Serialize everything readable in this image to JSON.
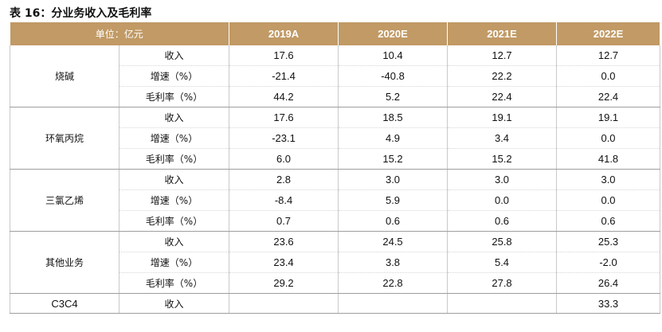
{
  "title": "表 16：分业务收入及毛利率",
  "header": {
    "unit": "单位：亿元",
    "years": [
      "2019A",
      "2020E",
      "2021E",
      "2022E"
    ]
  },
  "groups": [
    {
      "segment": "烧碱",
      "rows": [
        {
          "metric": "收入",
          "values": [
            "17.6",
            "10.4",
            "12.7",
            "12.7"
          ]
        },
        {
          "metric": "增速（%）",
          "values": [
            "-21.4",
            "-40.8",
            "22.2",
            "0.0"
          ]
        },
        {
          "metric": "毛利率（%）",
          "values": [
            "44.2",
            "5.2",
            "22.4",
            "22.4"
          ]
        }
      ]
    },
    {
      "segment": "环氧丙烷",
      "rows": [
        {
          "metric": "收入",
          "values": [
            "17.6",
            "18.5",
            "19.1",
            "19.1"
          ]
        },
        {
          "metric": "增速（%）",
          "values": [
            "-23.1",
            "4.9",
            "3.4",
            "0.0"
          ]
        },
        {
          "metric": "毛利率（%）",
          "values": [
            "6.0",
            "15.2",
            "15.2",
            "41.8"
          ]
        }
      ]
    },
    {
      "segment": "三氯乙烯",
      "rows": [
        {
          "metric": "收入",
          "values": [
            "2.8",
            "3.0",
            "3.0",
            "3.0"
          ]
        },
        {
          "metric": "增速（%）",
          "values": [
            "-8.4",
            "5.9",
            "0.0",
            "0.0"
          ]
        },
        {
          "metric": "毛利率（%）",
          "values": [
            "0.7",
            "0.6",
            "0.6",
            "0.6"
          ]
        }
      ]
    },
    {
      "segment": "其他业务",
      "rows": [
        {
          "metric": "收入",
          "values": [
            "23.6",
            "24.5",
            "25.8",
            "25.3"
          ]
        },
        {
          "metric": "增速（%）",
          "values": [
            "23.4",
            "3.8",
            "5.4",
            "-2.0"
          ]
        },
        {
          "metric": "毛利率（%）",
          "values": [
            "29.2",
            "22.8",
            "27.8",
            "26.4"
          ]
        }
      ]
    },
    {
      "segment": "C3C4",
      "rows": [
        {
          "metric": "收入",
          "values": [
            "",
            "",
            "",
            "33.3"
          ]
        }
      ]
    }
  ]
}
